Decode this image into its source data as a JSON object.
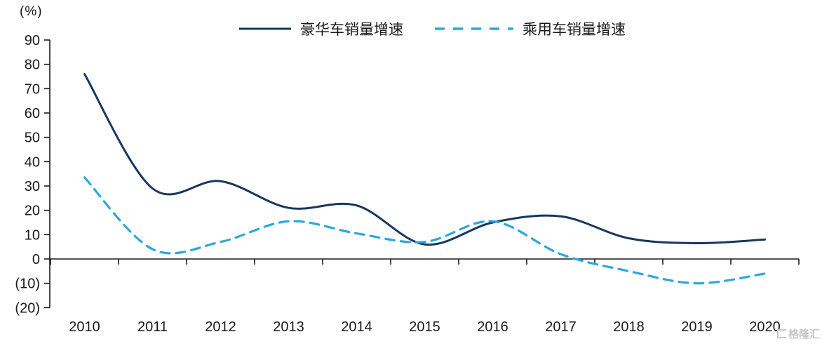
{
  "chart_data": {
    "type": "line",
    "title": "",
    "ylabel": "(%)",
    "xlabel": "",
    "categories": [
      "2010",
      "2011",
      "2012",
      "2013",
      "2014",
      "2015",
      "2016",
      "2017",
      "2018",
      "2019",
      "2020"
    ],
    "series": [
      {
        "name": "豪华车销量增速",
        "color": "#17375e",
        "style": "solid",
        "values": [
          76,
          29,
          32,
          21,
          22,
          6,
          15,
          17.5,
          8.5,
          6.5,
          8
        ]
      },
      {
        "name": "乘用车销量增速",
        "color": "#29a8dd",
        "style": "dashed",
        "values": [
          33.5,
          4,
          7,
          15.5,
          10.5,
          7,
          15.5,
          2,
          -5,
          -10,
          -6
        ]
      }
    ],
    "y_ticks": [
      {
        "value": 90,
        "label": "90"
      },
      {
        "value": 80,
        "label": "80"
      },
      {
        "value": 70,
        "label": "70"
      },
      {
        "value": 60,
        "label": "60"
      },
      {
        "value": 50,
        "label": "50"
      },
      {
        "value": 40,
        "label": "40"
      },
      {
        "value": 30,
        "label": "30"
      },
      {
        "value": 20,
        "label": "20"
      },
      {
        "value": 10,
        "label": "10"
      },
      {
        "value": 0,
        "label": "0"
      },
      {
        "value": -10,
        "label": "(10)"
      },
      {
        "value": -20,
        "label": "(20)"
      }
    ],
    "ylim": [
      -20,
      90
    ],
    "grid": false,
    "legend_position": "top-center",
    "line_smoothing": true,
    "negative_label_format": "parentheses",
    "axis_color": "#1a1a1a"
  },
  "watermark": {
    "text": "格隆汇"
  }
}
